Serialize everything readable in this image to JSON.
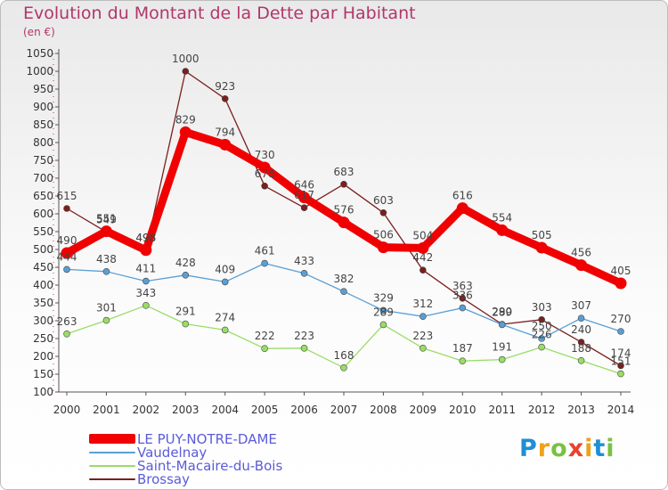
{
  "chart_data": {
    "type": "line",
    "title": "Evolution du Montant de la Dette par Habitant",
    "subtitle": "(en €)",
    "xlabel": "",
    "ylabel": "",
    "x": [
      "2000",
      "2001",
      "2002",
      "2003",
      "2004",
      "2005",
      "2006",
      "2007",
      "2008",
      "2009",
      "2010",
      "2011",
      "2012",
      "2013",
      "2014"
    ],
    "yticks": [
      100,
      150,
      200,
      250,
      300,
      350,
      400,
      450,
      500,
      550,
      600,
      650,
      700,
      750,
      800,
      850,
      900,
      950,
      1000,
      1050
    ],
    "ylim": [
      100,
      1050
    ],
    "grid": false,
    "legend_position": "bottom-left",
    "series": [
      {
        "name": "LE PUY-NOTRE-DAME",
        "color": "#f00000",
        "values": [
          490,
          551,
          498,
          829,
          794,
          730,
          646,
          576,
          506,
          504,
          616,
          554,
          505,
          456,
          405
        ]
      },
      {
        "name": "Vaudelnay",
        "color": "#5a9fd4",
        "values": [
          444,
          438,
          411,
          428,
          409,
          461,
          433,
          382,
          329,
          312,
          336,
          289,
          250,
          307,
          270
        ]
      },
      {
        "name": "Saint-Macaire-du-Bois",
        "color": "#99dd66",
        "values": [
          263,
          301,
          343,
          291,
          274,
          222,
          223,
          168,
          289,
          223,
          187,
          191,
          226,
          188,
          151
        ]
      },
      {
        "name": "Brossay",
        "color": "#7a1f1f",
        "values": [
          615,
          549,
          498,
          1000,
          923,
          678,
          617,
          683,
          603,
          442,
          363,
          290,
          303,
          240,
          174
        ]
      }
    ]
  },
  "logo": {
    "letters": [
      "P",
      "r",
      "o",
      "x",
      "i",
      "t",
      "i"
    ],
    "colors": [
      "#1e8fd6",
      "#f0a11a",
      "#7ac143",
      "#e8432d",
      "#f0a11a",
      "#1e8fd6",
      "#7ac143"
    ]
  }
}
